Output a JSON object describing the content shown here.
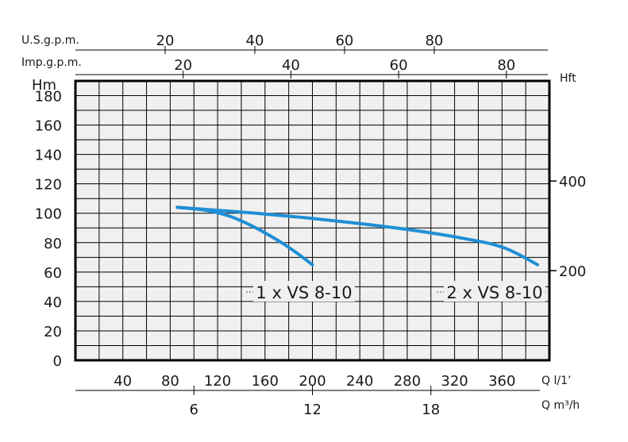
{
  "chart_data": {
    "type": "line",
    "colors": {
      "curve": "#1f8fd6",
      "grid": "#000000",
      "plot_background": "#f0f0f0"
    },
    "axes": {
      "left": {
        "label": "Hm",
        "range": [
          0,
          190
        ],
        "ticks": [
          "0",
          "20",
          "40",
          "60",
          "80",
          "100",
          "120",
          "140",
          "160",
          "180"
        ]
      },
      "right": {
        "label": "Hft",
        "ticks": [
          {
            "text": "200",
            "hm": 60.96
          },
          {
            "text": "400",
            "hm": 121.92
          }
        ]
      },
      "bottom_lpm": {
        "label": "Q l/1’",
        "range": [
          0,
          400
        ],
        "ticks": [
          "40",
          "80",
          "120",
          "160",
          "200",
          "240",
          "280",
          "320",
          "360"
        ]
      },
      "bottom_m3h": {
        "label": "Q m³/h",
        "ticks": [
          "6",
          "12",
          "18"
        ]
      },
      "top_usgpm": {
        "label": "U.S.g.p.m.",
        "ticks": [
          "20",
          "40",
          "60",
          "80"
        ]
      },
      "top_impgpm": {
        "label": "Imp.g.p.m.",
        "ticks": [
          "20",
          "40",
          "60",
          "80"
        ]
      }
    },
    "grid": true,
    "series": [
      {
        "name": "1 x VS 8-10",
        "x": [
          86,
          110,
          130,
          150,
          170,
          185,
          200
        ],
        "y": [
          104,
          102,
          98,
          91,
          82,
          74,
          65
        ]
      },
      {
        "name": "2 x VS 8-10",
        "x": [
          86,
          120,
          160,
          200,
          240,
          280,
          320,
          360,
          390
        ],
        "y": [
          104,
          102,
          99.5,
          96.5,
          93,
          89,
          84,
          77,
          65
        ]
      }
    ]
  }
}
